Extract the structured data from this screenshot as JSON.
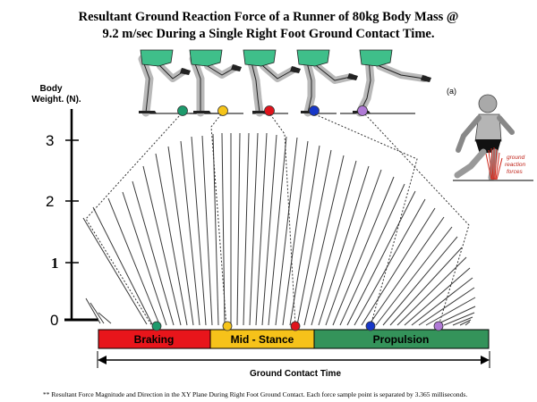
{
  "title_line1": "Resultant Ground Reaction Force of a  Runner of 80kg Body Mass @",
  "title_line2": "9.2 m/sec During a Single Right Foot Ground Contact Time.",
  "y_axis_label_line1": "Body",
  "y_axis_label_line2": "Weight. (N).",
  "y_ticks": [
    "0",
    "1",
    "2",
    "3"
  ],
  "phases": [
    {
      "label": "Braking",
      "color": "#e8151b"
    },
    {
      "label": "Mid - Stance",
      "color": "#f6c21a"
    },
    {
      "label": "Propulsion",
      "color": "#34935a"
    }
  ],
  "x_axis_label": "Ground Contact Time",
  "footnote": "** Resultant Force Magnitude and Direction in the XY Plane During Right Foot Ground Contact.  Each force sample point is separated by 3.365 milliseconds.",
  "inset_label": "(a)",
  "inset_caption": [
    "ground",
    "reaction",
    "forces"
  ],
  "marker_colors": [
    "#1d9a6c",
    "#f5c419",
    "#e0141c",
    "#1737c8",
    "#b07ad6"
  ],
  "figure_colors": {
    "shorts": "#3fbf8a",
    "skin": "#b9b9b9",
    "outline": "#222222",
    "line": "#333333"
  }
}
